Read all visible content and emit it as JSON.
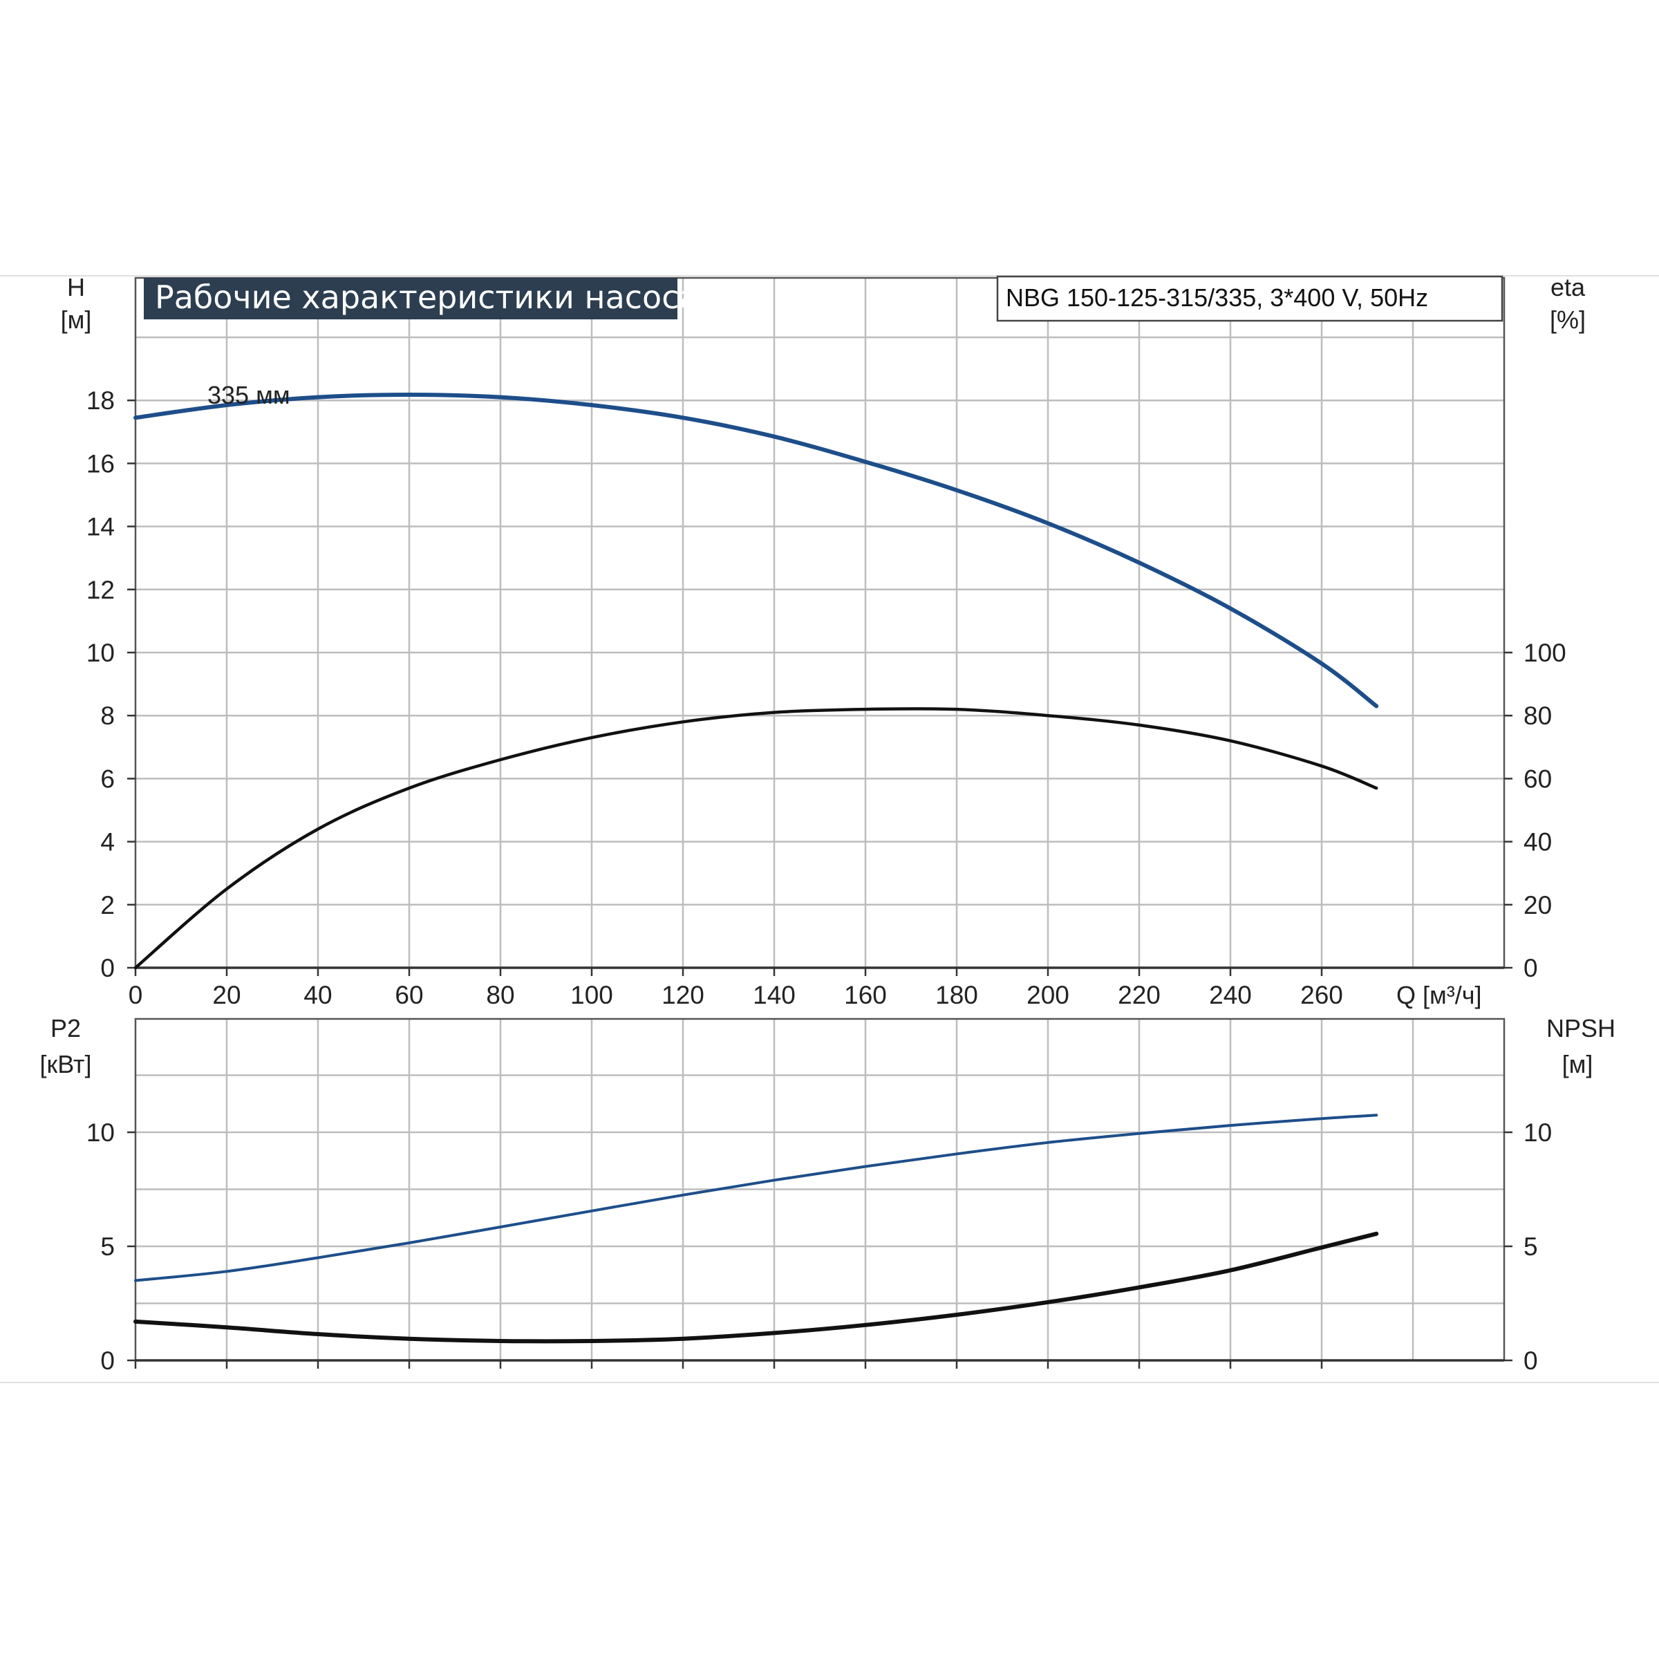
{
  "title": "Рабочие характеристики насоса",
  "model": "NBG 150-125-315/335, 3*400 V, 50Hz",
  "colors": {
    "head_curve": "#1d4e8a",
    "p2_curve": "#1d4e8a",
    "eta_curve": "#111111",
    "npsh_curve": "#111111",
    "grid": "#bdbdbd",
    "title_bg": "#2c3e50"
  },
  "chart_data": [
    {
      "type": "line",
      "panel": "top",
      "xlabel": "Q [м³/ч]",
      "xlim": [
        0,
        300
      ],
      "xticks": [
        0,
        20,
        40,
        60,
        80,
        100,
        120,
        140,
        160,
        180,
        200,
        220,
        240,
        260
      ],
      "left_axis": {
        "label_line1": "H",
        "label_line2": "[м]",
        "ylim": [
          0,
          20
        ],
        "ticks": [
          0,
          2,
          4,
          6,
          8,
          10,
          12,
          14,
          16,
          18
        ]
      },
      "right_axis": {
        "label_line1": "eta",
        "label_line2": "[%]",
        "ylim": [
          0,
          200
        ],
        "ticks": [
          0,
          20,
          40,
          60,
          80,
          100
        ]
      },
      "grid": true,
      "series": [
        {
          "id": "head",
          "axis": "left",
          "annotation": "335 мм",
          "points": [
            [
              0,
              17.45
            ],
            [
              20,
              17.85
            ],
            [
              40,
              18.1
            ],
            [
              60,
              18.18
            ],
            [
              80,
              18.1
            ],
            [
              100,
              17.85
            ],
            [
              120,
              17.45
            ],
            [
              140,
              16.85
            ],
            [
              160,
              16.05
            ],
            [
              180,
              15.15
            ],
            [
              200,
              14.1
            ],
            [
              220,
              12.85
            ],
            [
              240,
              11.4
            ],
            [
              260,
              9.65
            ],
            [
              272,
              8.3
            ]
          ]
        },
        {
          "id": "eta",
          "axis": "right",
          "points": [
            [
              0,
              0
            ],
            [
              20,
              25
            ],
            [
              40,
              44
            ],
            [
              60,
              57
            ],
            [
              80,
              66
            ],
            [
              100,
              73
            ],
            [
              120,
              78
            ],
            [
              140,
              81
            ],
            [
              160,
              82
            ],
            [
              180,
              82
            ],
            [
              200,
              80
            ],
            [
              220,
              77
            ],
            [
              240,
              72
            ],
            [
              260,
              64
            ],
            [
              272,
              57
            ]
          ]
        }
      ]
    },
    {
      "type": "line",
      "panel": "bottom",
      "xlim": [
        0,
        300
      ],
      "left_axis": {
        "label_line1": "P2",
        "label_line2": "[кВт]",
        "ylim": [
          0,
          15
        ],
        "ticks": [
          0,
          5,
          10
        ]
      },
      "right_axis": {
        "label_line1": "NPSH",
        "label_line2": "[м]",
        "ylim": [
          0,
          15
        ],
        "ticks": [
          0,
          5,
          10
        ]
      },
      "grid": true,
      "series": [
        {
          "id": "p2",
          "axis": "left",
          "points": [
            [
              0,
              3.5
            ],
            [
              20,
              3.9
            ],
            [
              40,
              4.5
            ],
            [
              60,
              5.15
            ],
            [
              80,
              5.85
            ],
            [
              100,
              6.55
            ],
            [
              120,
              7.25
            ],
            [
              140,
              7.9
            ],
            [
              160,
              8.5
            ],
            [
              180,
              9.05
            ],
            [
              200,
              9.55
            ],
            [
              220,
              9.95
            ],
            [
              240,
              10.3
            ],
            [
              260,
              10.6
            ],
            [
              272,
              10.75
            ]
          ]
        },
        {
          "id": "npsh",
          "axis": "right",
          "points": [
            [
              0,
              1.7
            ],
            [
              20,
              1.45
            ],
            [
              40,
              1.15
            ],
            [
              60,
              0.95
            ],
            [
              80,
              0.85
            ],
            [
              100,
              0.85
            ],
            [
              120,
              0.95
            ],
            [
              140,
              1.2
            ],
            [
              160,
              1.55
            ],
            [
              180,
              2.0
            ],
            [
              200,
              2.55
            ],
            [
              220,
              3.2
            ],
            [
              240,
              3.95
            ],
            [
              260,
              4.95
            ],
            [
              272,
              5.55
            ]
          ]
        }
      ]
    }
  ]
}
